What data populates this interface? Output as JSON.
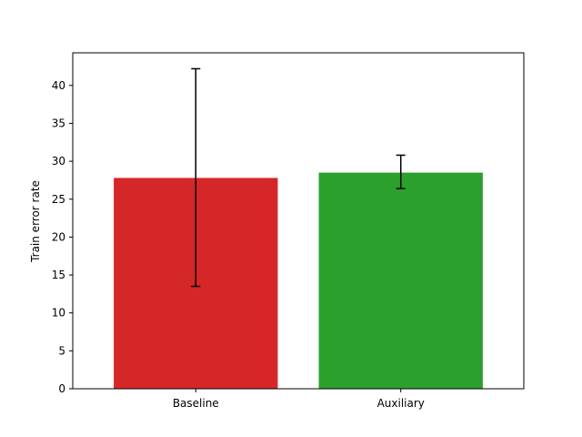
{
  "chart_data": {
    "type": "bar",
    "title": "",
    "xlabel": "",
    "ylabel": "Train error rate",
    "categories": [
      "Baseline",
      "Auxiliary"
    ],
    "values": [
      27.8,
      28.5
    ],
    "error_bars": [
      {
        "lower": 13.5,
        "upper": 42.2
      },
      {
        "lower": 26.4,
        "upper": 30.8
      }
    ],
    "bar_colors": [
      "#d62728",
      "#2ca02c"
    ],
    "ylim": [
      0,
      44.3
    ],
    "yticks": [
      0,
      5,
      10,
      15,
      20,
      25,
      30,
      35,
      40
    ],
    "grid": false,
    "legend": "none"
  }
}
